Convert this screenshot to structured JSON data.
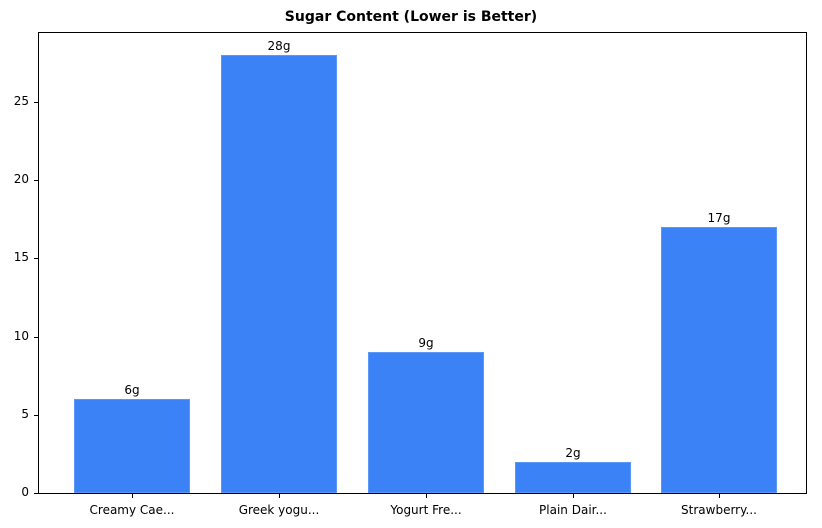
{
  "chart_data": {
    "type": "bar",
    "title": "Sugar Content (Lower is Better)",
    "xlabel": "",
    "ylabel": "",
    "categories": [
      "Creamy Cae...",
      "Greek yogu...",
      "Yogurt Fre...",
      "Plain Dair...",
      "Strawberry..."
    ],
    "values": [
      6,
      28,
      9,
      2,
      17
    ],
    "value_labels": [
      "6g",
      "28g",
      "9g",
      "2g",
      "17g"
    ],
    "ylim": [
      0,
      29.4
    ],
    "yticks": [
      0,
      5,
      10,
      15,
      20,
      25
    ],
    "grid": false,
    "bar_color": "#3b82f6"
  }
}
